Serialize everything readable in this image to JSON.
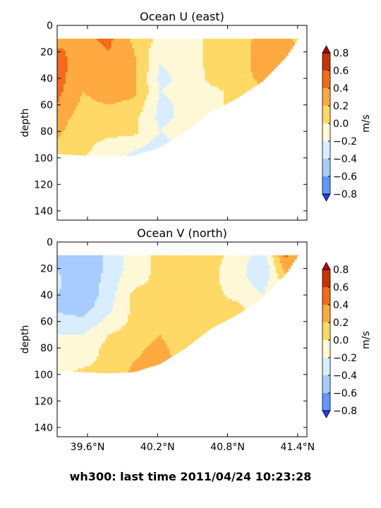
{
  "figure_title": "wh300: last time 2011/04/24 10:23:28",
  "color_levels": {
    "bounds": [
      -0.8,
      -0.6,
      -0.4,
      -0.2,
      0.0,
      0.2,
      0.4,
      0.6,
      0.8
    ],
    "colors": [
      "#6496ff",
      "#a8ccff",
      "#d8eeff",
      "#fff8d6",
      "#ffd966",
      "#ffaa40",
      "#f46a1a",
      "#c83200"
    ],
    "under_color": "#2838ff",
    "over_color": "#b40000"
  },
  "chart_data": [
    {
      "type": "heatmap",
      "title": "Ocean U (east)",
      "ylabel": "depth",
      "colorbar_label": "m/s",
      "colorbar_ticks": [
        "0.8",
        "0.6",
        "0.4",
        "0.2",
        "0.0",
        "−0.2",
        "−0.4",
        "−0.6",
        "−0.8"
      ],
      "xlim": [
        39.34,
        41.48
      ],
      "ylim": [
        147,
        0
      ],
      "x_ticks": [],
      "y_ticks": [
        0,
        20,
        40,
        60,
        80,
        100,
        120,
        140
      ],
      "x_nodes": [
        39.34,
        39.56,
        39.78,
        40.0,
        40.22,
        40.44,
        40.66,
        40.88,
        41.1,
        41.3,
        41.48
      ],
      "depth_nodes": [
        10,
        20,
        30,
        40,
        50,
        60,
        70,
        80,
        90,
        100
      ],
      "valid_max_depth": [
        97,
        98,
        99,
        98,
        92,
        80,
        65,
        55,
        42,
        24,
        0
      ],
      "values": [
        [
          0.3,
          0.35,
          0.45,
          0.15,
          -0.05,
          -0.1,
          0.05,
          0.05,
          0.3,
          0.25,
          0.1
        ],
        [
          0.45,
          0.3,
          0.4,
          0.2,
          -0.15,
          -0.1,
          0.05,
          0.05,
          0.35,
          0.3,
          0.1
        ],
        [
          0.5,
          0.25,
          0.35,
          0.25,
          -0.2,
          -0.12,
          0.05,
          0.1,
          0.3,
          0.25,
          0.05
        ],
        [
          0.5,
          0.2,
          0.3,
          0.25,
          -0.25,
          -0.15,
          0.05,
          0.1,
          0.25,
          0.2,
          0.05
        ],
        [
          0.45,
          0.2,
          0.3,
          0.25,
          -0.2,
          -0.15,
          -0.05,
          0.05,
          0.2,
          0.15,
          0.05
        ],
        [
          0.4,
          0.15,
          0.2,
          0.15,
          -0.25,
          -0.15,
          -0.05,
          0.05,
          0.15,
          0.1,
          0.05
        ],
        [
          0.3,
          0.1,
          0.1,
          0.05,
          -0.25,
          -0.15,
          -0.05,
          0.05,
          0.1,
          0.05,
          0.05
        ],
        [
          0.25,
          0.05,
          0.05,
          0.05,
          -0.2,
          -0.1,
          -0.05,
          0.05,
          0.05,
          0.05,
          0.05
        ],
        [
          0.15,
          0.05,
          -0.05,
          -0.1,
          -0.3,
          -0.1,
          -0.05,
          0.05,
          0.05,
          0.05,
          0.05
        ],
        [
          0.05,
          0.0,
          -0.1,
          -0.3,
          -0.5,
          -0.1,
          -0.05,
          0.05,
          0.05,
          0.05,
          0.05
        ]
      ]
    },
    {
      "type": "heatmap",
      "title": "Ocean V (north)",
      "ylabel": "depth",
      "colorbar_label": "m/s",
      "colorbar_ticks": [
        "0.8",
        "0.6",
        "0.4",
        "0.2",
        "0.0",
        "−0.2",
        "−0.4",
        "−0.6",
        "−0.8"
      ],
      "xlim": [
        39.34,
        41.48
      ],
      "ylim": [
        147,
        0
      ],
      "x_ticks": [
        39.6,
        40.2,
        40.8,
        41.4
      ],
      "x_tick_labels": [
        "39.6°N",
        "40.2°N",
        "40.8°N",
        "41.4°N"
      ],
      "y_ticks": [
        0,
        20,
        40,
        60,
        80,
        100,
        120,
        140
      ],
      "x_nodes": [
        39.34,
        39.56,
        39.78,
        40.0,
        40.22,
        40.44,
        40.66,
        40.88,
        41.1,
        41.3,
        41.48
      ],
      "depth_nodes": [
        10,
        20,
        30,
        40,
        50,
        60,
        70,
        80,
        90,
        100
      ],
      "valid_max_depth": [
        97,
        98,
        99,
        98,
        92,
        80,
        65,
        55,
        42,
        24,
        0
      ],
      "values": [
        [
          -0.45,
          -0.55,
          -0.35,
          -0.1,
          0.05,
          0.05,
          0.05,
          -0.05,
          -0.3,
          0.45,
          0.1
        ],
        [
          -0.4,
          -0.6,
          -0.35,
          -0.1,
          0.05,
          0.05,
          0.05,
          -0.1,
          -0.4,
          0.3,
          0.05
        ],
        [
          -0.35,
          -0.6,
          -0.3,
          -0.05,
          0.05,
          0.05,
          0.05,
          -0.1,
          -0.3,
          0.1,
          0.05
        ],
        [
          -0.4,
          -0.55,
          -0.3,
          0.05,
          0.05,
          0.05,
          0.05,
          -0.05,
          -0.2,
          0.05,
          0.05
        ],
        [
          -0.45,
          -0.5,
          -0.25,
          0.05,
          0.1,
          0.05,
          0.05,
          0.05,
          -0.1,
          0.05,
          0.05
        ],
        [
          -0.3,
          -0.35,
          -0.15,
          0.05,
          0.1,
          0.05,
          0.05,
          0.05,
          0.05,
          0.05,
          0.05
        ],
        [
          -0.2,
          -0.2,
          0.0,
          0.1,
          0.2,
          0.05,
          0.05,
          0.05,
          0.05,
          0.05,
          0.05
        ],
        [
          -0.1,
          -0.1,
          0.05,
          0.15,
          0.25,
          0.1,
          0.05,
          0.05,
          0.05,
          0.05,
          0.05
        ],
        [
          -0.05,
          -0.05,
          0.05,
          0.2,
          0.3,
          0.1,
          0.05,
          0.05,
          0.05,
          0.05,
          0.05
        ],
        [
          -0.05,
          0.05,
          0.05,
          0.25,
          0.35,
          0.1,
          0.05,
          0.05,
          0.05,
          0.05,
          0.05
        ]
      ]
    }
  ]
}
